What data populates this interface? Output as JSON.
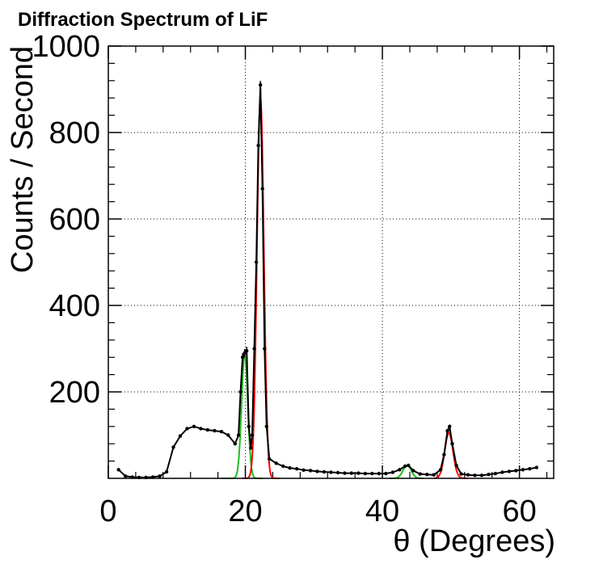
{
  "chart_data": {
    "type": "line",
    "title": "Diffraction Spectrum of LiF",
    "xlabel": "θ (Degrees)",
    "ylabel": "Counts / Second",
    "xlim": [
      0,
      65
    ],
    "ylim": [
      0,
      1000
    ],
    "x_ticks": [
      "0",
      "20",
      "40",
      "60"
    ],
    "y_ticks": [
      "200",
      "400",
      "600",
      "800",
      "1000"
    ],
    "grid": true,
    "colors": {
      "data": "#000000",
      "fit_red": "#ff0000",
      "fit_green": "#22bb22"
    },
    "series": [
      {
        "kind": "data",
        "color": "#000000",
        "points": [
          [
            1.5,
            20
          ],
          [
            2.5,
            5
          ],
          [
            3.5,
            3
          ],
          [
            4.5,
            2
          ],
          [
            5.5,
            2
          ],
          [
            6.5,
            3
          ],
          [
            7.5,
            5
          ],
          [
            8.5,
            15
          ],
          [
            9.5,
            72
          ],
          [
            10.5,
            98
          ],
          [
            11.5,
            115
          ],
          [
            12.5,
            120
          ],
          [
            13.5,
            115
          ],
          [
            14.5,
            112
          ],
          [
            15.5,
            110
          ],
          [
            16.5,
            108
          ],
          [
            17.5,
            100
          ],
          [
            18.5,
            80
          ],
          [
            19.0,
            100
          ],
          [
            19.3,
            200
          ],
          [
            19.6,
            280
          ],
          [
            19.9,
            290
          ],
          [
            20.2,
            295
          ],
          [
            20.5,
            120
          ],
          [
            20.8,
            70
          ],
          [
            21.0,
            100
          ],
          [
            21.3,
            300
          ],
          [
            21.6,
            500
          ],
          [
            21.9,
            770
          ],
          [
            22.2,
            910
          ],
          [
            22.5,
            670
          ],
          [
            22.8,
            300
          ],
          [
            23.1,
            120
          ],
          [
            23.5,
            45
          ],
          [
            24.5,
            35
          ],
          [
            25.5,
            28
          ],
          [
            26.5,
            24
          ],
          [
            27.5,
            22
          ],
          [
            28.5,
            19
          ],
          [
            29.5,
            18
          ],
          [
            30.5,
            16
          ],
          [
            31.5,
            15
          ],
          [
            32.5,
            14
          ],
          [
            33.5,
            13
          ],
          [
            34.5,
            12
          ],
          [
            35.5,
            12
          ],
          [
            36.5,
            12
          ],
          [
            37.5,
            11
          ],
          [
            38.5,
            11
          ],
          [
            39.5,
            11
          ],
          [
            40.5,
            11
          ],
          [
            41.5,
            14
          ],
          [
            42.5,
            20
          ],
          [
            43.3,
            28
          ],
          [
            43.8,
            30
          ],
          [
            44.5,
            18
          ],
          [
            45.5,
            10
          ],
          [
            46.5,
            9
          ],
          [
            47.5,
            8
          ],
          [
            48.5,
            20
          ],
          [
            49.0,
            55
          ],
          [
            49.5,
            110
          ],
          [
            49.8,
            120
          ],
          [
            50.2,
            80
          ],
          [
            50.8,
            30
          ],
          [
            51.5,
            10
          ],
          [
            52.5,
            8
          ],
          [
            53.5,
            7
          ],
          [
            54.5,
            7
          ],
          [
            55.5,
            9
          ],
          [
            56.5,
            11
          ],
          [
            57.5,
            14
          ],
          [
            58.5,
            16
          ],
          [
            59.5,
            18
          ],
          [
            60.5,
            20
          ],
          [
            61.5,
            22
          ],
          [
            62.5,
            25
          ]
        ]
      },
      {
        "kind": "gaussian-fit",
        "color": "#22bb22",
        "amplitude": 285,
        "center": 19.9,
        "sigma": 0.45,
        "range": [
          16.5,
          22.5
        ]
      },
      {
        "kind": "gaussian-fit",
        "color": "#ff0000",
        "amplitude": 880,
        "center": 22.2,
        "sigma": 0.5,
        "range": [
          19.5,
          25.0
        ]
      },
      {
        "kind": "gaussian-fit",
        "color": "#22bb22",
        "amplitude": 30,
        "center": 43.6,
        "sigma": 0.6,
        "range": [
          41.0,
          46.0
        ]
      },
      {
        "kind": "gaussian-fit",
        "color": "#ff0000",
        "amplitude": 105,
        "center": 49.7,
        "sigma": 0.6,
        "range": [
          47.5,
          52.5
        ]
      }
    ]
  }
}
